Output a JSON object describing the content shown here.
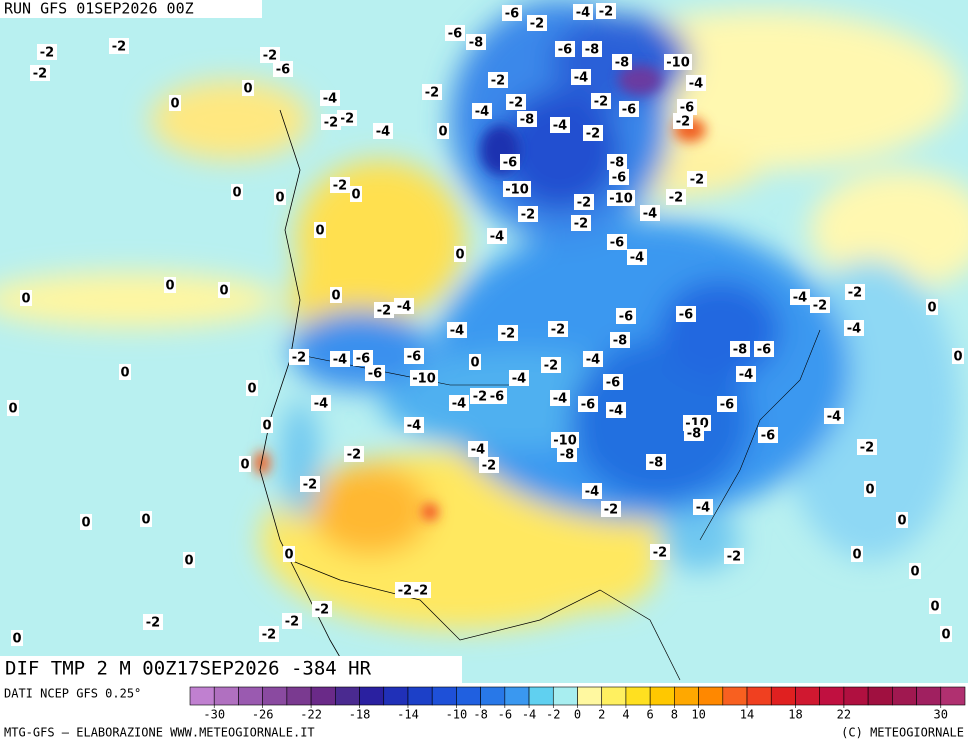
{
  "header": {
    "run": "RUN GFS 01SEP2026 00Z"
  },
  "map": {
    "field_title": "DIF TMP 2 M 00Z17SEP2026 -384 HR",
    "contour_labels": [
      -2,
      -2,
      -2,
      -2,
      -6,
      0,
      0,
      -4,
      -2,
      -2,
      -4,
      -2,
      0,
      -6,
      -8,
      -6,
      -2,
      -4,
      -2,
      -6,
      -8,
      -8,
      -10,
      -4,
      -4,
      -2,
      -2,
      -6,
      -4,
      -2,
      -6,
      -2,
      -8,
      -4,
      -2,
      -6,
      -8,
      -6,
      -10,
      -10,
      -2,
      -2,
      -2,
      -4,
      -2,
      -2,
      -4,
      -6,
      -4,
      0,
      0,
      -2,
      0,
      0,
      0,
      0,
      0,
      0,
      0,
      -2,
      -4,
      -4,
      -2,
      -2,
      -6,
      -6,
      -8,
      -4,
      -2,
      -2,
      0,
      -4,
      0,
      -2,
      -4,
      -6,
      -6,
      -6,
      -10,
      0,
      -2,
      -4,
      -4,
      -8,
      -6,
      -4,
      0,
      0,
      0,
      -4,
      -2,
      -6,
      -4,
      -4,
      -6,
      -4,
      -6,
      -6,
      -4,
      -4,
      0,
      -10,
      -8,
      -10,
      -8,
      -6,
      -2,
      -4,
      -2,
      0,
      -2,
      -8,
      -2,
      -4,
      0,
      -2,
      -4,
      0,
      0,
      0,
      0,
      0,
      -2,
      -2,
      0,
      0,
      -2,
      -2,
      -2,
      -2,
      -2,
      0,
      -2,
      0,
      0
    ]
  },
  "colorbar": {
    "source": "DATI NCEP GFS 0.25°",
    "lim": [
      -32,
      32
    ],
    "colors": [
      "#c080d0",
      "#b070c0",
      "#9a5ab0",
      "#8a4aa0",
      "#7a3a90",
      "#6a2a88",
      "#4a2a90",
      "#2a20a0",
      "#2030b8",
      "#1c40c8",
      "#1e50d8",
      "#2060e0",
      "#2878e8",
      "#3a98f0",
      "#60d0f0",
      "#a8eef0",
      "#fff8a0",
      "#fff060",
      "#ffe020",
      "#ffc800",
      "#ffa800",
      "#ff8800",
      "#f86020",
      "#f04020",
      "#e02020",
      "#d01830",
      "#c01040",
      "#b01040",
      "#a01040",
      "#a01850",
      "#a02060",
      "#b03070"
    ],
    "ticks": [
      -30,
      -26,
      -22,
      -18,
      -14,
      -10,
      -8,
      -6,
      -4,
      -2,
      0,
      2,
      4,
      6,
      8,
      10,
      14,
      18,
      22,
      30
    ]
  },
  "footer": {
    "left": "MTG-GFS — ELABORAZIONE WWW.METEOGIORNALE.IT",
    "right": "(C) METEOGIORNALE"
  }
}
